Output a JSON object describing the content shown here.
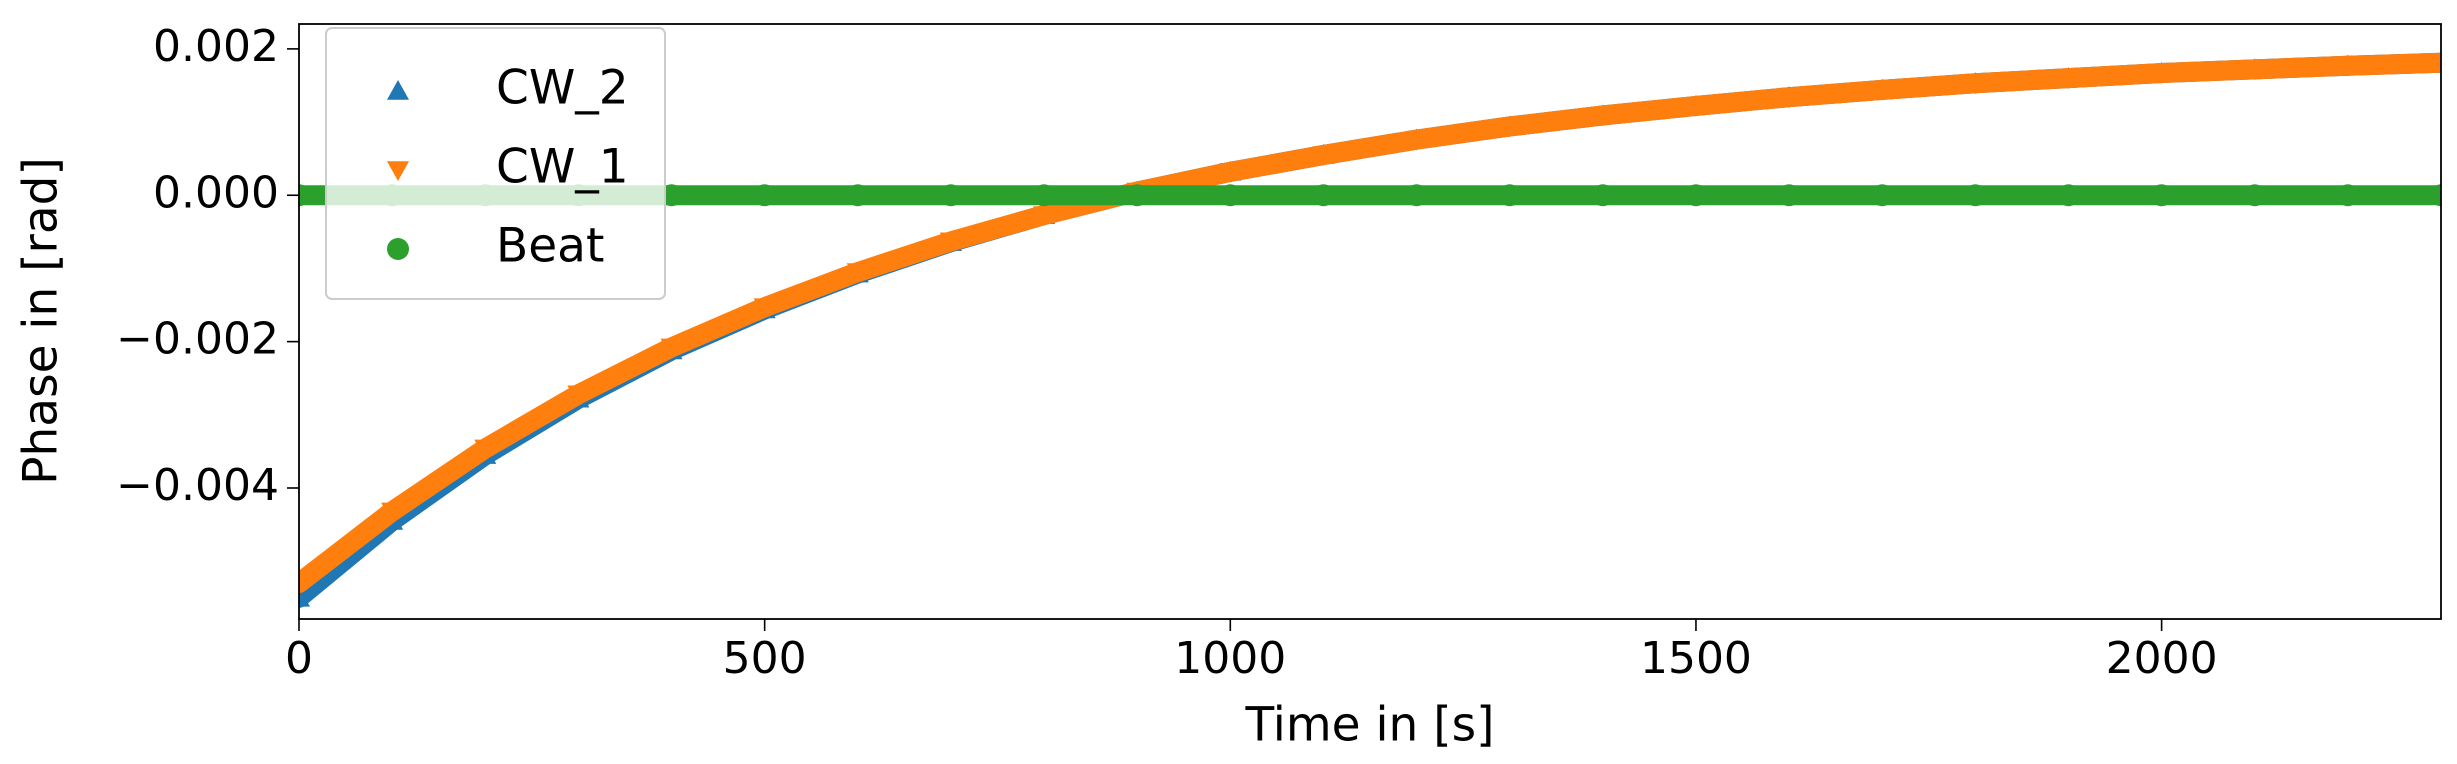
{
  "chart_data": {
    "type": "scatter",
    "xlabel": "Time in [s]",
    "ylabel": "Phase in [rad]",
    "x": [
      0,
      100,
      200,
      300,
      400,
      500,
      600,
      700,
      800,
      900,
      1000,
      1100,
      1200,
      1300,
      1400,
      1500,
      1600,
      1700,
      1800,
      1900,
      2000,
      2100,
      2200,
      2300
    ],
    "series": [
      {
        "name": "CW_2",
        "color": "#1f77b4",
        "marker": "triangle-up",
        "values": [
          -0.0055,
          -0.00445,
          -0.00355,
          -0.00278,
          -0.00212,
          -0.00156,
          -0.00107,
          -0.00064,
          -0.00027,
          5e-05,
          0.00032,
          0.00055,
          0.00076,
          0.00094,
          0.00109,
          0.00122,
          0.00134,
          0.00144,
          0.00153,
          0.0016,
          0.00167,
          0.00172,
          0.00177,
          0.00181
        ]
      },
      {
        "name": "CW_1",
        "color": "#ff7f0e",
        "marker": "triangle-down",
        "values": [
          -0.0053,
          -0.00432,
          -0.00346,
          -0.00272,
          -0.00208,
          -0.00153,
          -0.00105,
          -0.00063,
          -0.00027,
          5e-05,
          0.00032,
          0.00055,
          0.00076,
          0.00094,
          0.00109,
          0.00122,
          0.00134,
          0.00144,
          0.00153,
          0.0016,
          0.00167,
          0.00172,
          0.00177,
          0.00181
        ]
      },
      {
        "name": "Beat",
        "color": "#2ca02c",
        "marker": "circle",
        "values": [
          0,
          0,
          0,
          0,
          0,
          0,
          0,
          0,
          0,
          0,
          0,
          0,
          0,
          0,
          0,
          0,
          0,
          0,
          0,
          0,
          0,
          0,
          0,
          0
        ]
      }
    ],
    "xlim": [
      0,
      2300
    ],
    "xticks": [
      0,
      500,
      1000,
      1500,
      2000
    ],
    "ylim": [
      -0.00579,
      0.00234
    ],
    "yticks": [
      {
        "value": 0.002,
        "label": "0.002"
      },
      {
        "value": 0,
        "label": "0.000"
      },
      {
        "value": -0.002,
        "label": "−0.002"
      },
      {
        "value": -0.004,
        "label": "−0.004"
      }
    ],
    "legend": "upper left"
  }
}
